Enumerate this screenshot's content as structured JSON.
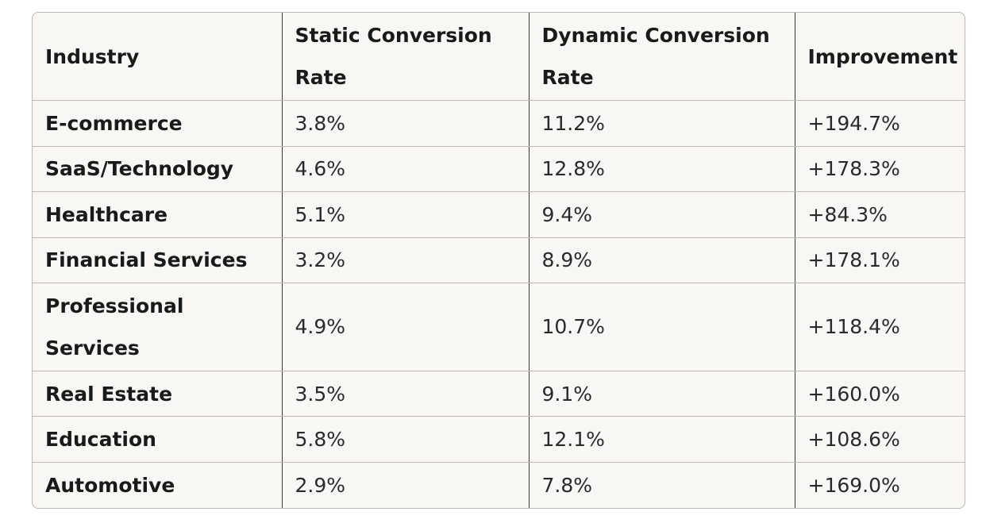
{
  "table": {
    "headers": [
      "Industry",
      "Static Conversion Rate",
      "Dynamic Conversion Rate",
      "Improvement"
    ],
    "rows": [
      {
        "industry": "E-commerce",
        "static": "3.8%",
        "dynamic": "11.2%",
        "improvement": "+194.7%"
      },
      {
        "industry": "SaaS/Technology",
        "static": "4.6%",
        "dynamic": "12.8%",
        "improvement": "+178.3%"
      },
      {
        "industry": "Healthcare",
        "static": "5.1%",
        "dynamic": "9.4%",
        "improvement": "+84.3%"
      },
      {
        "industry": "Financial Services",
        "static": "3.2%",
        "dynamic": "8.9%",
        "improvement": "+178.1%"
      },
      {
        "industry": "Professional Services",
        "static": "4.9%",
        "dynamic": "10.7%",
        "improvement": "+118.4%"
      },
      {
        "industry": "Real Estate",
        "static": "3.5%",
        "dynamic": "9.1%",
        "improvement": "+160.0%"
      },
      {
        "industry": "Education",
        "static": "5.8%",
        "dynamic": "12.1%",
        "improvement": "+108.6%"
      },
      {
        "industry": "Automotive",
        "static": "2.9%",
        "dynamic": "7.8%",
        "improvement": "+169.0%"
      }
    ]
  }
}
